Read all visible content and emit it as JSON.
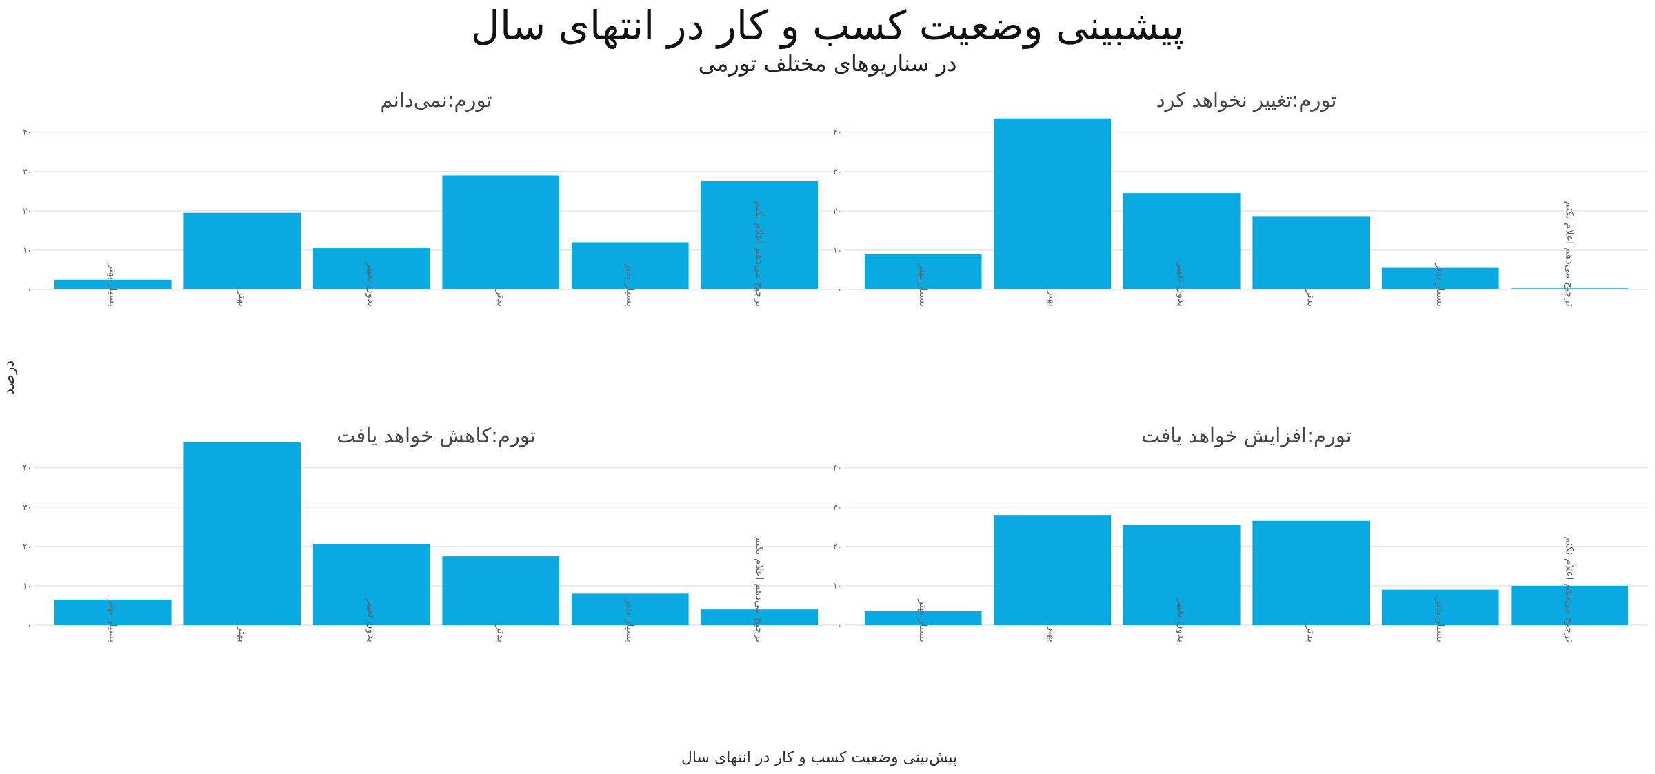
{
  "chart_data": {
    "type": "bar",
    "title": "پیشبینی وضعیت کسب و کار در انتهای سال",
    "subtitle": "در سناریوهای مختلف تورمی",
    "xlabel": "پیش‌بینی وضعیت کسب و کار در انتهای سال",
    "ylabel": "درصد",
    "ylim": [
      0,
      48
    ],
    "y_ticks": [
      0,
      10,
      20,
      30,
      40
    ],
    "y_tick_labels": [
      "۰",
      "۱۰",
      "۲۰",
      "۳۰",
      "۴۰"
    ],
    "grid": true,
    "panels": [
      {
        "name": "تورم:نمی‌دانم",
        "categories": [
          "بسیار بهتر",
          "بهتر",
          "بدون تغییر",
          "بدتر",
          "بسیار بدتر",
          "ترجیح می‌دهم اعلام نکنم"
        ],
        "values": [
          2.5,
          19.5,
          10.5,
          29,
          12,
          27.5
        ]
      },
      {
        "name": "تورم:تغییر نخواهد کرد",
        "categories": [
          "بسیار بهتر",
          "بهتر",
          "بدون تغییر",
          "بدتر",
          "بسیار بدتر",
          "ترجیح می‌دهم اعلام نکنم"
        ],
        "values": [
          9,
          43.5,
          24.5,
          18.5,
          5.5,
          0.3
        ]
      },
      {
        "name": "تورم:کاهش خواهد یافت",
        "categories": [
          "بسیار بهتر",
          "بهتر",
          "بدون تغییر",
          "بدتر",
          "بسیار بدتر",
          "ترجیح می‌دهم اعلام نکنم"
        ],
        "values": [
          6.5,
          46.5,
          20.5,
          17.5,
          8,
          4
        ]
      },
      {
        "name": "تورم:افزایش خواهد یافت",
        "categories": [
          "بسیار بهتر",
          "بهتر",
          "بدون تغییر",
          "بدتر",
          "بسیار بدتر",
          "ترجیح می‌دهم اعلام نکنم"
        ],
        "values": [
          3.5,
          28,
          25.5,
          26.5,
          9,
          10
        ]
      }
    ],
    "colors": {
      "bar": "#09a9e2",
      "grid": "#e6e6e6"
    }
  }
}
